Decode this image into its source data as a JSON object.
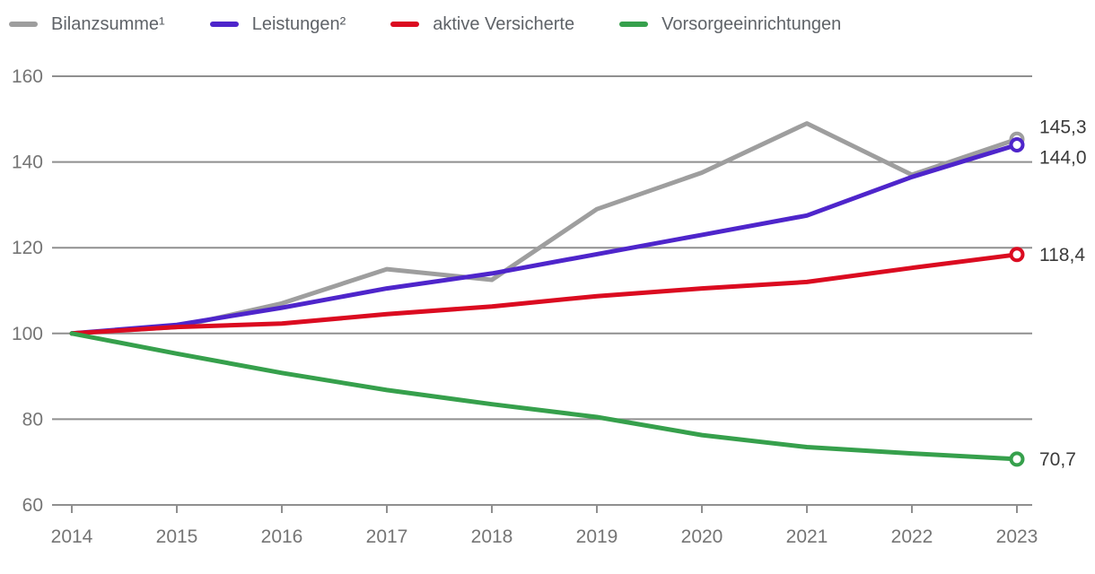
{
  "chart_data": {
    "type": "line",
    "title": "",
    "x": [
      2014,
      2015,
      2016,
      2017,
      2018,
      2019,
      2020,
      2021,
      2022,
      2023
    ],
    "x_tick_labels": [
      "2014",
      "2015",
      "2016",
      "2017",
      "2018",
      "2019",
      "2020",
      "2021",
      "2022",
      "2023"
    ],
    "ylim": [
      60,
      160
    ],
    "yticks": [
      60,
      80,
      100,
      120,
      140,
      160
    ],
    "ytick_labels": [
      "60",
      "80",
      "100",
      "120",
      "140",
      "160"
    ],
    "grid": "horizontal",
    "legend_position": "top",
    "series": [
      {
        "name": "Bilanzsumme¹",
        "color": "#9e9e9e",
        "values": [
          100,
          101.5,
          107,
          115,
          112.5,
          129,
          137.5,
          149,
          137,
          145.3
        ],
        "end_label": "145,3"
      },
      {
        "name": "Leistungen²",
        "color": "#4e25cb",
        "values": [
          100,
          102,
          106,
          110.5,
          114,
          118.5,
          123,
          127.5,
          136.5,
          144
        ],
        "end_label": "144,0"
      },
      {
        "name": "aktive Versicherte",
        "color": "#db0b20",
        "values": [
          100,
          101.5,
          102.3,
          104.5,
          106.3,
          108.7,
          110.5,
          112,
          115.3,
          118.4
        ],
        "end_label": "118,4"
      },
      {
        "name": "Vorsorgeeinrichtungen",
        "color": "#36a04c",
        "values": [
          100,
          95.3,
          90.8,
          86.8,
          83.5,
          80.5,
          76.3,
          73.5,
          72,
          70.7
        ],
        "end_label": "70,7"
      }
    ]
  },
  "colors": {
    "background": "#ffffff",
    "grid": "#8f8f8f",
    "axis_text": "#757575",
    "value_label": "#3b3b3b",
    "legend_text": "#5f6368"
  }
}
